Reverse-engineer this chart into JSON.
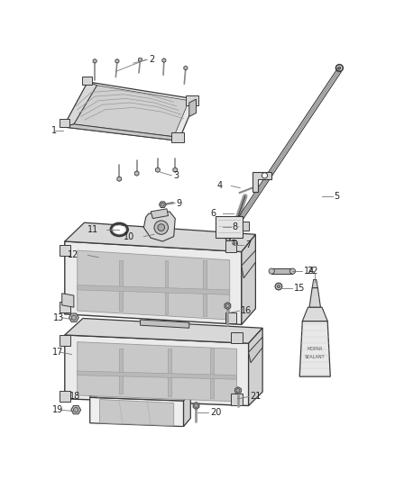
{
  "bg": "#ffffff",
  "fig_w": 4.38,
  "fig_h": 5.33,
  "dpi": 100,
  "lc": "#3a3a3a",
  "lc2": "#666666",
  "label_fs": 7.0,
  "label_color": "#222222",
  "leader_color": "#777777"
}
